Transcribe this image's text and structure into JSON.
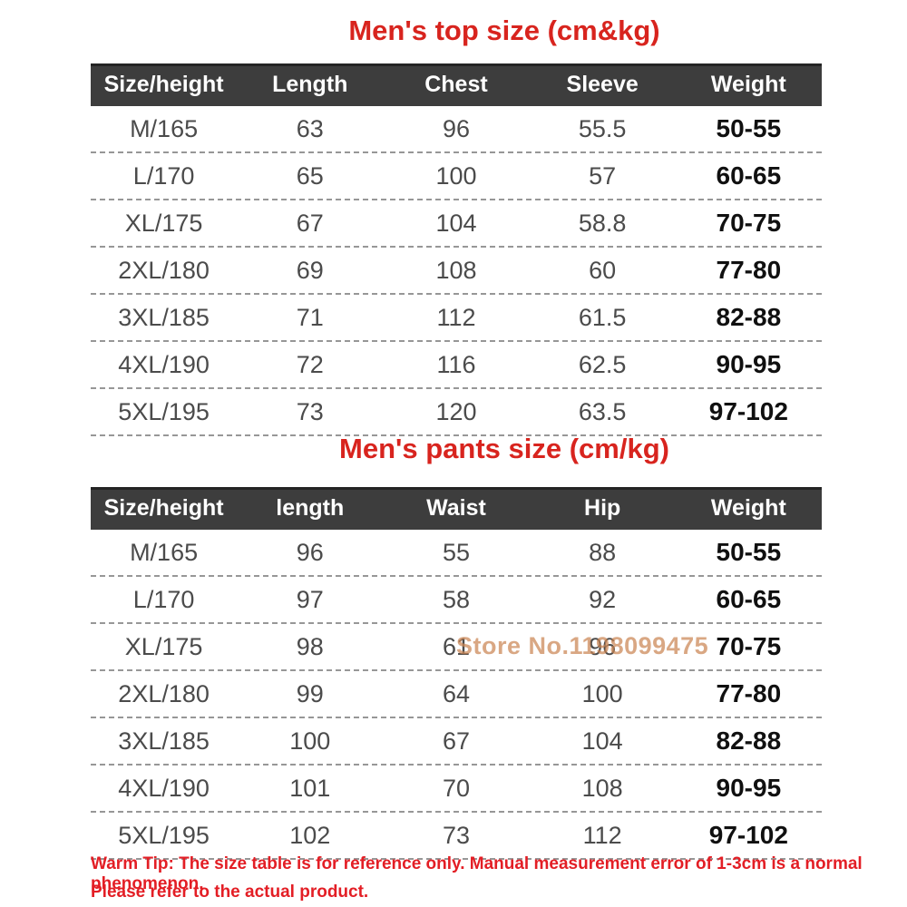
{
  "colors": {
    "title_red": "#d8241e",
    "footer_red": "#e31e25",
    "header_bg": "#3d3d3d",
    "header_text": "#ffffff",
    "row_text": "#4b4b4b",
    "weight_text": "#101010",
    "divider": "#979797",
    "watermark": "#cb8553"
  },
  "top_table": {
    "title": "Men's top size (cm&kg)",
    "headers": [
      "Size/height",
      "Length",
      "Chest",
      "Sleeve",
      "Weight"
    ],
    "rows": [
      [
        "M/165",
        "63",
        "96",
        "55.5",
        "50-55"
      ],
      [
        "L/170",
        "65",
        "100",
        "57",
        "60-65"
      ],
      [
        "XL/175",
        "67",
        "104",
        "58.8",
        "70-75"
      ],
      [
        "2XL/180",
        "69",
        "108",
        "60",
        "77-80"
      ],
      [
        "3XL/185",
        "71",
        "112",
        "61.5",
        "82-88"
      ],
      [
        "4XL/190",
        "72",
        "116",
        "62.5",
        "90-95"
      ],
      [
        "5XL/195",
        "73",
        "120",
        "63.5",
        "97-102"
      ]
    ]
  },
  "pants_table": {
    "title": "Men's pants size (cm/kg)",
    "headers": [
      "Size/height",
      "length",
      "Waist",
      "Hip",
      "Weight"
    ],
    "rows": [
      [
        "M/165",
        "96",
        "55",
        "88",
        "50-55"
      ],
      [
        "L/170",
        "97",
        "58",
        "92",
        "60-65"
      ],
      [
        "XL/175",
        "98",
        "61",
        "96",
        "70-75"
      ],
      [
        "2XL/180",
        "99",
        "64",
        "100",
        "77-80"
      ],
      [
        "3XL/185",
        "100",
        "67",
        "104",
        "82-88"
      ],
      [
        "4XL/190",
        "101",
        "70",
        "108",
        "90-95"
      ],
      [
        "5XL/195",
        "102",
        "73",
        "112",
        "97-102"
      ]
    ]
  },
  "watermark": {
    "text": "Store No.1198099475"
  },
  "footer": {
    "line1": "Warm Tip: The size table is for reference only. Manual measurement error of 1-3cm is a normal phenomenon.",
    "line2": "Please refer to the actual product."
  }
}
